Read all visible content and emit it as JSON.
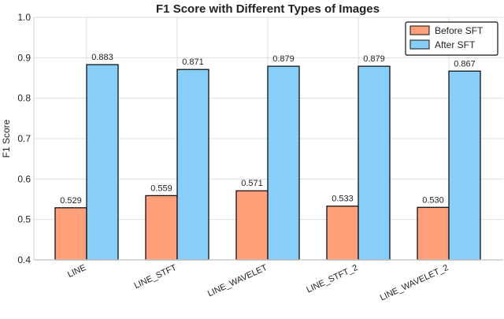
{
  "chart_data": {
    "type": "bar",
    "title": "F1 Score with Different Types of Images",
    "xlabel": "",
    "ylabel": "F1 Score",
    "ylim": [
      0.4,
      1.0
    ],
    "yticks": [
      "0.4",
      "0.5",
      "0.6",
      "0.7",
      "0.8",
      "0.9",
      "1.0"
    ],
    "categories": [
      "LINE",
      "LINE_STFT",
      "LINE_WAVELET",
      "LINE_STFT_2",
      "LINE_WAVELET_2"
    ],
    "series": [
      {
        "name": "Before SFT",
        "color": "#FFA07A",
        "values": [
          0.529,
          0.559,
          0.571,
          0.533,
          0.53
        ],
        "labels": [
          "0.529",
          "0.559",
          "0.571",
          "0.533",
          "0.530"
        ]
      },
      {
        "name": "After SFT",
        "color": "#87CEFA",
        "values": [
          0.883,
          0.871,
          0.879,
          0.879,
          0.867
        ],
        "labels": [
          "0.883",
          "0.871",
          "0.879",
          "0.879",
          "0.867"
        ]
      }
    ],
    "grid": true,
    "legend": "top-right"
  }
}
